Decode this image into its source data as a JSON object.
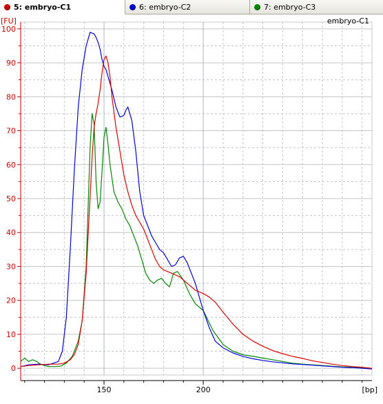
{
  "tabs": [
    {
      "label": "5: embryo-C1",
      "color": "#cc0000",
      "active": true
    },
    {
      "label": "6: embryo-C2",
      "color": "#0000cc",
      "active": false
    },
    {
      "label": "7: embryo-C3",
      "color": "#008800",
      "active": false
    }
  ],
  "chart_data": {
    "type": "line",
    "title": "embryo-C1",
    "ylabel": "[FU]",
    "xlabel": "[bp]",
    "xlim": [
      108,
      285
    ],
    "ylim": [
      -2,
      102
    ],
    "xticks": [
      150,
      200
    ],
    "xtick_labels": [
      "150",
      "200"
    ],
    "yticks": [
      0,
      10,
      20,
      30,
      40,
      50,
      60,
      70,
      80,
      90,
      100
    ],
    "ytick_labels": [
      "0",
      "10",
      "20",
      "30",
      "40",
      "50",
      "60",
      "70",
      "80",
      "90",
      "100"
    ],
    "grid": true,
    "axis_color": "#cc0000",
    "series": [
      {
        "name": "embryo-C1",
        "color": "#dd0000",
        "x": [
          108,
          112,
          117,
          122,
          127,
          130,
          133,
          135,
          137,
          139,
          141,
          142.5,
          144,
          145,
          146,
          147,
          148,
          149,
          150,
          151,
          152,
          153,
          154,
          156,
          158,
          160,
          162,
          164,
          166,
          168,
          170,
          172,
          174,
          176,
          178,
          180,
          182,
          184,
          186,
          188,
          190,
          192,
          194,
          196,
          198,
          200,
          203,
          206,
          210,
          215,
          220,
          225,
          230,
          235,
          240,
          245,
          250,
          255,
          260,
          265,
          270,
          275,
          280,
          285
        ],
        "y": [
          0.5,
          0.8,
          1.0,
          1.2,
          1.2,
          1.5,
          2.5,
          4,
          7,
          14,
          28,
          45,
          62,
          71,
          75,
          78,
          82,
          87,
          91,
          92,
          90,
          86,
          80,
          71,
          64,
          57,
          52,
          48,
          45,
          43,
          41,
          38,
          35,
          32,
          30,
          29,
          28.5,
          28,
          27.5,
          27,
          26,
          25,
          24,
          23,
          22.5,
          22,
          21,
          19.5,
          16.5,
          13,
          10,
          8,
          6.5,
          5.2,
          4.3,
          3.5,
          2.9,
          2.2,
          1.7,
          1.2,
          0.8,
          0.5,
          0.3,
          0.0
        ]
      },
      {
        "name": "embryo-C2",
        "color": "#0000dd",
        "x": [
          108,
          112,
          117,
          122,
          127,
          129,
          131,
          133,
          135,
          137,
          139,
          141,
          143,
          145,
          146,
          147,
          148,
          149,
          150,
          151,
          152,
          154,
          156,
          158,
          160,
          161,
          162,
          164,
          166,
          168,
          170,
          172,
          174,
          176,
          178,
          180,
          182,
          184,
          186,
          188,
          190,
          192,
          194,
          196,
          198,
          200,
          203,
          206,
          210,
          215,
          220,
          225,
          230,
          235,
          240,
          245,
          250,
          255,
          260,
          265,
          270,
          275,
          280,
          285
        ],
        "y": [
          0.5,
          1.0,
          1.2,
          1.0,
          2.0,
          5,
          15,
          35,
          58,
          77,
          88,
          95,
          99,
          98.5,
          97.5,
          96,
          94,
          91,
          89,
          88,
          86,
          82,
          77,
          74,
          74.5,
          76,
          77,
          73,
          64,
          52,
          45,
          42,
          39,
          37,
          35,
          34,
          32,
          30,
          30.5,
          32.5,
          33,
          31,
          28,
          25,
          21,
          17,
          12,
          8,
          6,
          4.5,
          3.5,
          2.8,
          2.3,
          1.9,
          1.6,
          1.3,
          1.1,
          0.9,
          0.7,
          0.5,
          0.3,
          0.2,
          0.0,
          -0.2
        ]
      },
      {
        "name": "embryo-C3",
        "color": "#008800",
        "x": [
          108,
          110,
          112,
          114,
          116,
          118,
          120,
          122,
          125,
          128,
          131,
          134,
          137,
          139,
          141,
          142,
          143,
          144,
          145,
          146,
          147,
          148,
          149,
          150,
          151,
          152,
          153,
          155,
          157,
          159,
          161,
          163,
          165,
          167,
          169,
          171,
          173,
          175,
          177,
          179,
          181,
          183,
          185,
          187,
          190,
          193,
          196,
          200,
          205,
          210,
          215,
          220,
          225,
          230,
          235,
          240,
          245,
          250,
          255,
          260,
          265,
          270,
          275,
          280,
          285
        ],
        "y": [
          2.0,
          3.0,
          2.0,
          2.5,
          2.0,
          1.2,
          0.8,
          0.5,
          0.5,
          0.6,
          1.5,
          3.5,
          8,
          14,
          30,
          48,
          65,
          75,
          72,
          55,
          47,
          49,
          58,
          68,
          71,
          66,
          60,
          52,
          49,
          47,
          44,
          42,
          39,
          36,
          32,
          28,
          26,
          25,
          26,
          26.5,
          25,
          24,
          28,
          28.5,
          26,
          22,
          19,
          17,
          11,
          7,
          5,
          4,
          3.5,
          3,
          2.5,
          2,
          1.5,
          1.2,
          1.0,
          0.8,
          0.6,
          0.4,
          0.3,
          0.2,
          0.0
        ]
      }
    ]
  }
}
